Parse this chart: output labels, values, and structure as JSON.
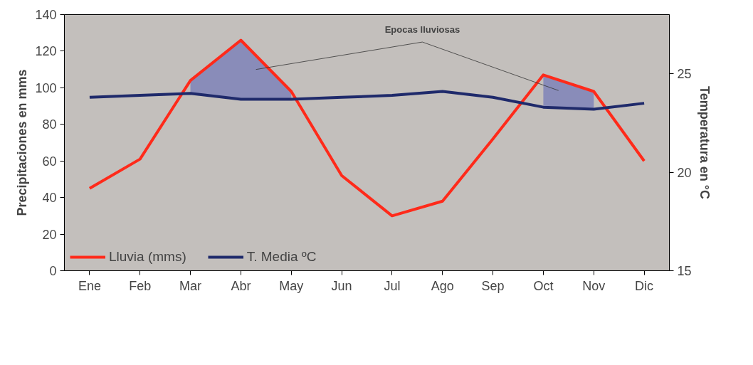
{
  "chart_data": {
    "type": "line",
    "categories": [
      "Ene",
      "Feb",
      "Mar",
      "Abr",
      "May",
      "Jun",
      "Jul",
      "Ago",
      "Sep",
      "Oct",
      "Nov",
      "Dic"
    ],
    "ylabel": "Precipitaciones en mms",
    "y2label": "Temperatura en °C",
    "ylim": [
      0,
      140
    ],
    "yticks": [
      0,
      20,
      40,
      60,
      80,
      100,
      120,
      140
    ],
    "y2lim": [
      15,
      28
    ],
    "y2ticks": [
      15,
      20,
      25
    ],
    "series": [
      {
        "name": "Lluvia (mms)",
        "color": "#ff2a1a",
        "values": [
          45,
          61,
          104,
          126,
          98,
          52,
          30,
          38,
          72,
          107,
          98,
          60
        ],
        "lower": [
          null,
          null,
          97,
          94,
          94,
          null,
          null,
          null,
          null,
          90,
          88,
          null
        ],
        "upper": [
          null,
          null,
          104,
          126,
          98,
          null,
          null,
          null,
          null,
          107,
          98,
          null
        ]
      },
      {
        "name": "T. Media ºC",
        "color": "#1f2a6b",
        "axis": "y2",
        "values": [
          23.8,
          23.9,
          24.0,
          23.7,
          23.7,
          23.8,
          23.9,
          24.1,
          23.8,
          23.3,
          23.2,
          23.5
        ]
      }
    ],
    "annotations": [
      "Epocas lluviosas"
    ],
    "grid": false,
    "legend": "bottom left",
    "marker": "none",
    "line_style": "solid"
  }
}
